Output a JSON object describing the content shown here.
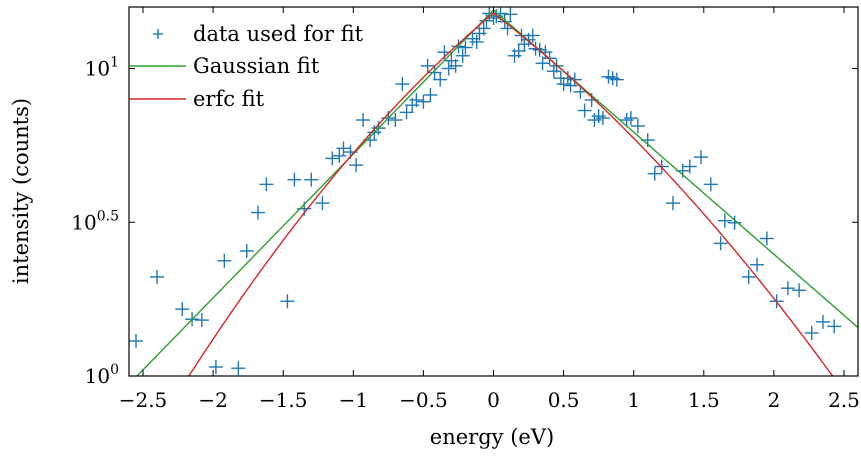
{
  "chart_data": {
    "type": "scatter",
    "xlabel": "energy (eV)",
    "ylabel": "intensity (counts)",
    "xlim": [
      -2.6,
      2.6
    ],
    "ylim_log10": [
      0,
      1.2
    ],
    "yscale": "log",
    "grid": false,
    "legend_position": "top-left",
    "x_ticks": [
      -2.5,
      -2,
      -1.5,
      -1,
      -0.5,
      0,
      0.5,
      1,
      1.5,
      2,
      2.5
    ],
    "x_tick_labels": [
      "−2.5",
      "−2",
      "−1.5",
      "−1",
      "−0.5",
      "0",
      "0.5",
      "1",
      "1.5",
      "2",
      "2.5"
    ],
    "y_ticks_log10": [
      0,
      0.5,
      1
    ],
    "y_tick_labels": [
      {
        "base": "10",
        "exp": "0"
      },
      {
        "base": "10",
        "exp": "0.5"
      },
      {
        "base": "10",
        "exp": "1"
      }
    ],
    "series": [
      {
        "name": "data used for fit",
        "kind": "scatter",
        "marker": "+",
        "color": "#1f77b4",
        "points": [
          [
            -2.55,
            1.3
          ],
          [
            -2.4,
            2.1
          ],
          [
            -2.22,
            1.65
          ],
          [
            -2.15,
            1.53
          ],
          [
            -2.08,
            1.52
          ],
          [
            -1.98,
            1.07
          ],
          [
            -1.92,
            2.37
          ],
          [
            -1.82,
            1.06
          ],
          [
            -1.76,
            2.55
          ],
          [
            -1.68,
            3.4
          ],
          [
            -1.62,
            4.2
          ],
          [
            -1.47,
            1.75
          ],
          [
            -1.42,
            4.35
          ],
          [
            -1.35,
            3.5
          ],
          [
            -1.3,
            4.35
          ],
          [
            -1.22,
            3.65
          ],
          [
            -1.15,
            5.1
          ],
          [
            -1.1,
            5.2
          ],
          [
            -1.07,
            5.5
          ],
          [
            -1.02,
            5.35
          ],
          [
            -0.98,
            4.85
          ],
          [
            -0.93,
            6.8
          ],
          [
            -0.88,
            5.85
          ],
          [
            -0.85,
            6.2
          ],
          [
            -0.82,
            6.4
          ],
          [
            -0.75,
            6.9
          ],
          [
            -0.7,
            6.8
          ],
          [
            -0.65,
            8.9
          ],
          [
            -0.62,
            7.2
          ],
          [
            -0.58,
            7.6
          ],
          [
            -0.55,
            7.9
          ],
          [
            -0.5,
            7.8
          ],
          [
            -0.47,
            10.2
          ],
          [
            -0.45,
            8.2
          ],
          [
            -0.42,
            9.7
          ],
          [
            -0.38,
            9.2
          ],
          [
            -0.35,
            11.3
          ],
          [
            -0.32,
            10.0
          ],
          [
            -0.3,
            10.6
          ],
          [
            -0.27,
            10.2
          ],
          [
            -0.25,
            11.8
          ],
          [
            -0.22,
            11.0
          ],
          [
            -0.2,
            11.7
          ],
          [
            -0.15,
            12.5
          ],
          [
            -0.12,
            12.2
          ],
          [
            -0.1,
            13.0
          ],
          [
            -0.07,
            13.5
          ],
          [
            -0.05,
            14.3
          ],
          [
            -0.03,
            15.1
          ],
          [
            0.0,
            14.6
          ],
          [
            0.02,
            14.8
          ],
          [
            0.05,
            15.1
          ],
          [
            0.08,
            14.2
          ],
          [
            0.1,
            13.5
          ],
          [
            0.12,
            15.0
          ],
          [
            0.15,
            11.0
          ],
          [
            0.18,
            11.4
          ],
          [
            0.2,
            12.8
          ],
          [
            0.22,
            12.0
          ],
          [
            0.25,
            12.4
          ],
          [
            0.28,
            12.8
          ],
          [
            0.3,
            11.6
          ],
          [
            0.33,
            11.5
          ],
          [
            0.35,
            10.4
          ],
          [
            0.37,
            11.3
          ],
          [
            0.4,
            10.8
          ],
          [
            0.43,
            9.8
          ],
          [
            0.45,
            10.2
          ],
          [
            0.48,
            9.3
          ],
          [
            0.5,
            8.9
          ],
          [
            0.53,
            9.3
          ],
          [
            0.55,
            8.8
          ],
          [
            0.58,
            9.2
          ],
          [
            0.62,
            8.4
          ],
          [
            0.65,
            7.3
          ],
          [
            0.7,
            7.9
          ],
          [
            0.72,
            6.8
          ],
          [
            0.75,
            7.0
          ],
          [
            0.78,
            6.9
          ],
          [
            0.82,
            9.4
          ],
          [
            0.85,
            9.3
          ],
          [
            0.88,
            9.2
          ],
          [
            0.95,
            6.8
          ],
          [
            0.98,
            6.9
          ],
          [
            1.03,
            6.5
          ],
          [
            1.1,
            5.85
          ],
          [
            1.15,
            4.55
          ],
          [
            1.2,
            4.8
          ],
          [
            1.28,
            3.65
          ],
          [
            1.35,
            4.65
          ],
          [
            1.4,
            4.8
          ],
          [
            1.48,
            5.15
          ],
          [
            1.55,
            4.2
          ],
          [
            1.62,
            2.7
          ],
          [
            1.65,
            3.2
          ],
          [
            1.72,
            3.15
          ],
          [
            1.82,
            2.1
          ],
          [
            1.88,
            2.3
          ],
          [
            1.95,
            2.8
          ],
          [
            2.02,
            1.75
          ],
          [
            2.1,
            1.93
          ],
          [
            2.18,
            1.9
          ],
          [
            2.27,
            1.38
          ],
          [
            2.35,
            1.5
          ],
          [
            2.43,
            1.45
          ]
        ]
      },
      {
        "name": "Gaussian fit",
        "kind": "line",
        "color": "#2ca02c",
        "center": 0.0,
        "peak_log10": 1.19,
        "left_slope_log10_per_eV": 0.468,
        "right_slope_log10_per_eV": 0.397
      },
      {
        "name": "erfc fit",
        "kind": "line",
        "color": "#d62728",
        "center": 0.0,
        "peak_log10": 1.18,
        "left_slope_log10_per_eV": 0.38,
        "right_slope_log10_per_eV": 0.35,
        "left_curvature_log10_per_eV2": 0.075,
        "right_curvature_log10_per_eV2": 0.057
      }
    ]
  }
}
